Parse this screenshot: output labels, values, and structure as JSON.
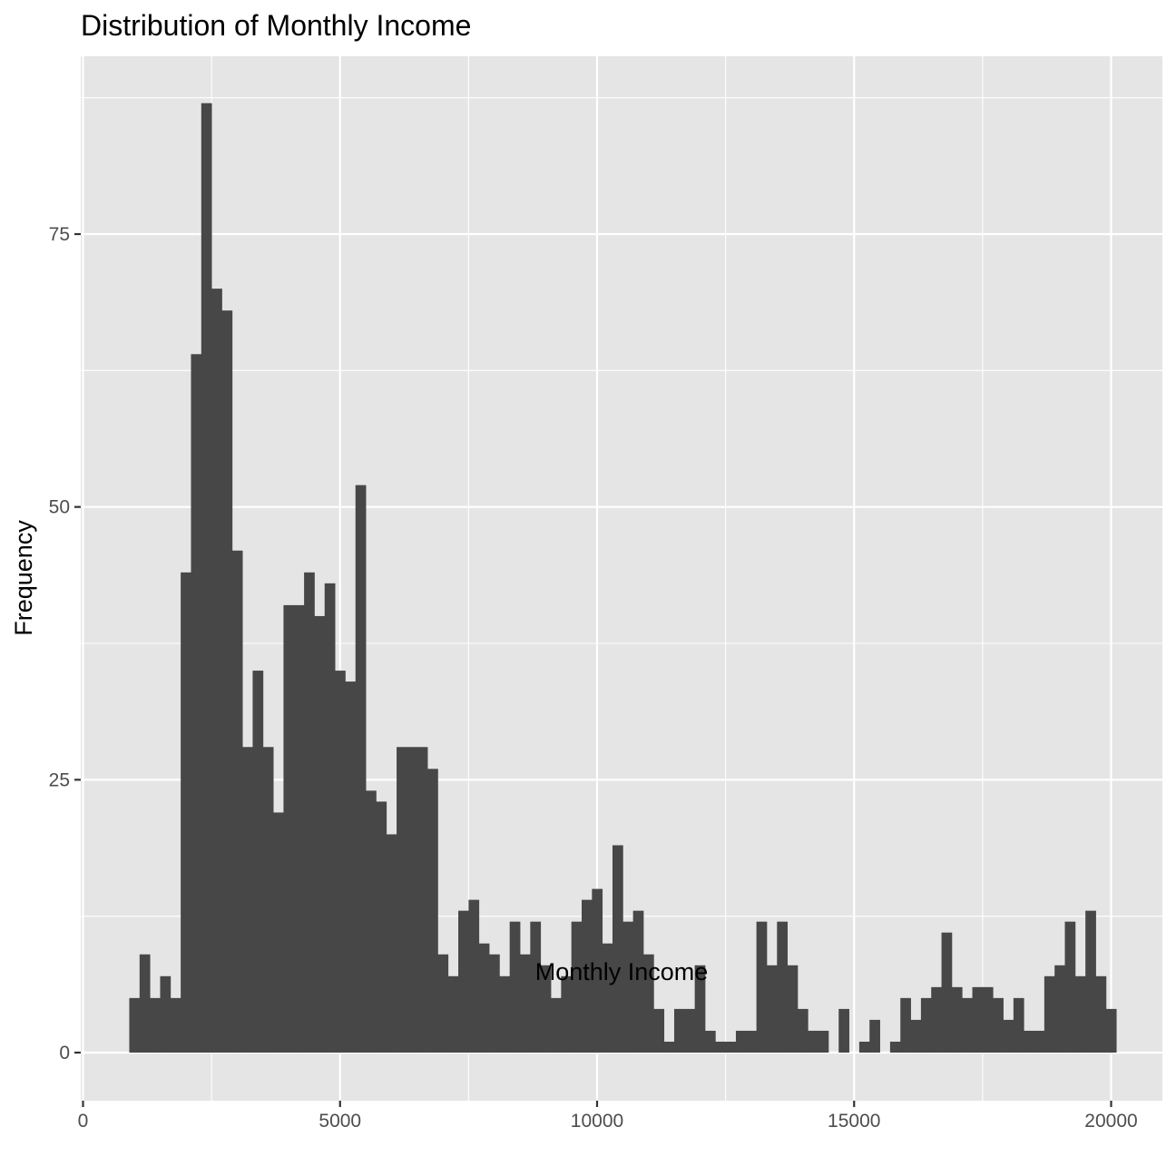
{
  "chart_data": {
    "type": "bar",
    "subtype": "histogram",
    "title": "Distribution of Monthly Income",
    "xlabel": "Monthly Income",
    "ylabel": "Frequency",
    "xlim": [
      0,
      21000
    ],
    "ylim": [
      -4,
      90
    ],
    "x_ticks": [
      0,
      5000,
      10000,
      15000,
      20000
    ],
    "y_ticks": [
      0,
      25,
      50,
      75
    ],
    "bin_width": 200,
    "first_bin_start": 900,
    "counts": [
      5,
      9,
      5,
      7,
      5,
      44,
      64,
      87,
      70,
      68,
      46,
      28,
      35,
      28,
      22,
      41,
      41,
      44,
      40,
      43,
      35,
      34,
      52,
      24,
      23,
      20,
      28,
      28,
      28,
      26,
      9,
      7,
      13,
      14,
      10,
      9,
      7,
      12,
      9,
      12,
      8,
      5,
      7,
      12,
      14,
      15,
      10,
      19,
      12,
      13,
      9,
      4,
      1,
      4,
      4,
      8,
      2,
      1,
      1,
      2,
      2,
      12,
      8,
      12,
      8,
      4,
      2,
      2,
      0,
      4,
      0,
      1,
      3,
      0,
      1,
      5,
      3,
      5,
      6,
      11,
      6,
      5,
      6,
      6,
      5,
      3,
      5,
      2,
      2,
      7,
      8,
      12,
      7,
      13,
      7,
      4
    ],
    "grid": true,
    "colors": {
      "bar": "#474747",
      "panel": "#e5e5e5",
      "grid": "#ffffff"
    }
  }
}
